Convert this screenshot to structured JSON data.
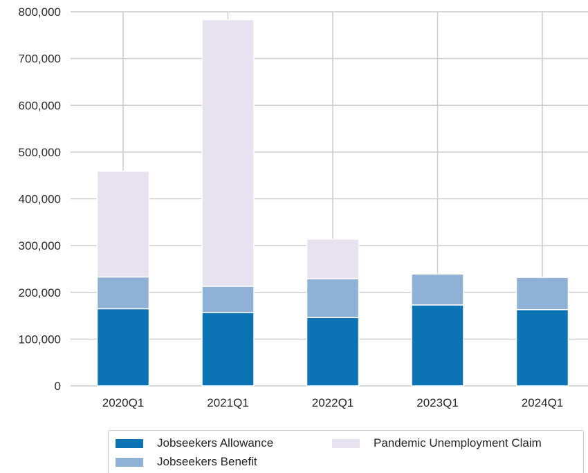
{
  "chart_data": {
    "type": "bar",
    "stacked": true,
    "categories": [
      "2020Q1",
      "2021Q1",
      "2022Q1",
      "2023Q1",
      "2024Q1"
    ],
    "series": [
      {
        "name": "Jobseekers Allowance",
        "color": "#0c74b4",
        "values": [
          165000,
          157000,
          146000,
          173000,
          163000
        ]
      },
      {
        "name": "Jobseekers Benefit",
        "color": "#8eb1d5",
        "values": [
          68000,
          56000,
          83000,
          66000,
          69000
        ]
      },
      {
        "name": "Pandemic Unemployment Claim",
        "color": "#e6e2f0",
        "values": [
          226000,
          570000,
          85000,
          0,
          0
        ]
      }
    ],
    "ylim": [
      0,
      800000
    ],
    "yticks": [
      0,
      100000,
      200000,
      300000,
      400000,
      500000,
      600000,
      700000,
      800000
    ],
    "ytick_labels": [
      "0",
      "100,000",
      "200,000",
      "300,000",
      "400,000",
      "500,000",
      "600,000",
      "700,000",
      "800,000"
    ],
    "grid": true,
    "legend_position": "bottom"
  }
}
